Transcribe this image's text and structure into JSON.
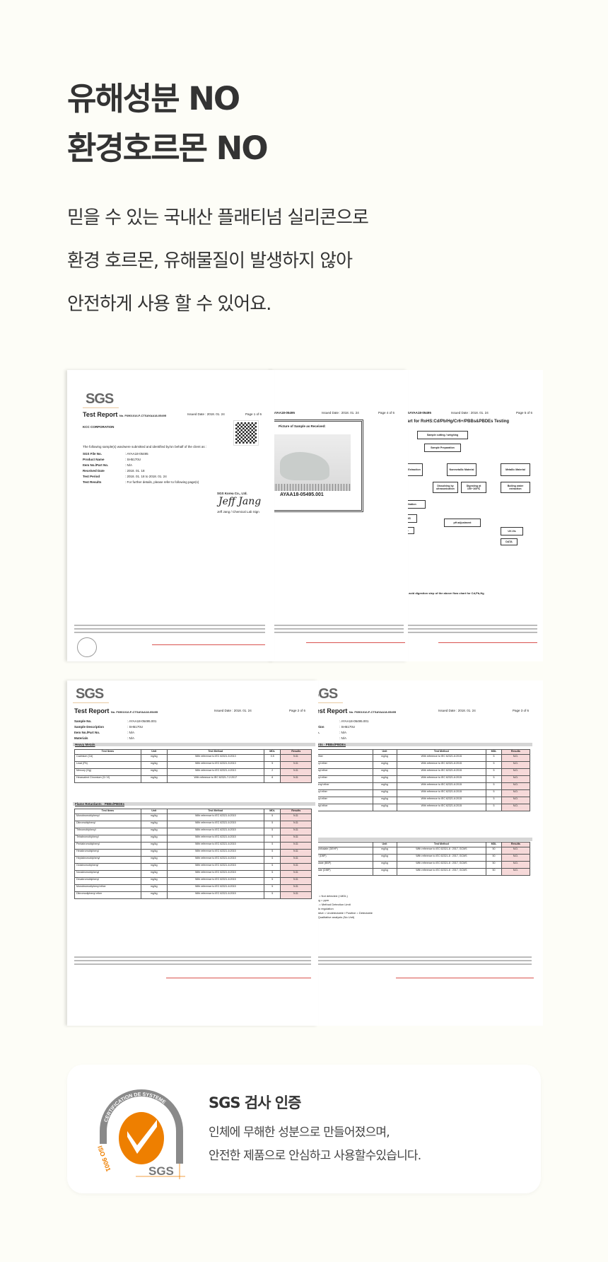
{
  "heading": {
    "line1": "유해성분 NO",
    "line2": "환경호르몬 NO"
  },
  "description": {
    "line1": "믿을 수 있는 국내산 플래티넘 실리콘으로",
    "line2": "환경 호르몬, 유해물질이 발생하지 않아",
    "line3": "안전하게 사용 할 수 있어요."
  },
  "documents": {
    "page1": {
      "logo": "SGS",
      "title": "Test Report",
      "report_no": "No. F690101/LF-CTSAYAA18-05495",
      "issued": "Issued Date : 2018. 01. 24",
      "page": "Page 1 of 6",
      "company": "KCC CORPORATION",
      "statement": "The following sample(s) was/were submitted and identified by/on behalf of the client as :",
      "fields": [
        {
          "k": "SGS File No.",
          "v": ": AYAA18-05495"
        },
        {
          "k": "Product Name",
          "v": ": SH5170U"
        },
        {
          "k": "Item No./Part No.",
          "v": ": N/A"
        },
        {
          "k": "Received Date",
          "v": ": 2018. 01. 18"
        },
        {
          "k": "Test Period",
          "v": ": 2018. 01. 18 to 2018. 01. 24"
        },
        {
          "k": "Test Results",
          "v": ": For further details, please refer to following page(s)"
        }
      ],
      "signer_company": "SGS Korea Co., Ltd.",
      "signature": "Jeff Jang",
      "signer": "Jeff Jang / Chemical Lab Sign"
    },
    "page4": {
      "ref": "AYAA18-05495",
      "issued": "Issued Date : 2018. 01. 24",
      "page": "Page 4 of 6",
      "photo_title": "Picture of Sample as Received:",
      "caption": "AYAA18-05495.001"
    },
    "page5": {
      "ref": "CTSAYAA18-05495",
      "issued": "Issued Date : 2018. 01. 24",
      "page": "Page 5 of 6",
      "chart_title": "Chart for RoHS:Cd/Pb/Hg/Cr6+/PBBs&PBDEs Testing",
      "boxes": [
        "Sample cutting / weighing",
        "Sample Preparation",
        "Solvent Extraction",
        "Nonmetallic Material",
        "Metallic Material",
        "Dissolving by ultrasonication",
        "Digesting at 150~160℃",
        "Boiling water extraction",
        "Filtration",
        "GC/MS",
        "DATA",
        "pH adjustment",
        "UV-Vis",
        "DATA"
      ],
      "note": "The acid digestion step of the above flow chart for Cd,Pb,Hg"
    },
    "page2": {
      "logo": "SGS",
      "title": "Test Report",
      "report_no": "No. F690101/LF-CTSAYAA18-05495",
      "issued": "Issued Date : 2018. 01. 24",
      "page": "Page 2 of 6",
      "fields": [
        {
          "k": "Sample No.",
          "v": ": AYAA18-05495.001"
        },
        {
          "k": "Sample Description",
          "v": ": SH5170U"
        },
        {
          "k": "Item No./Part No.",
          "v": ": N/A"
        },
        {
          "k": "Materials",
          "v": ": N/A"
        }
      ],
      "section1": "Heavy Metals",
      "section2": "Flame Retardants - PBBs/PBDEs",
      "headers": [
        "Test Items",
        "Unit",
        "Test Method",
        "MDL",
        "Results"
      ],
      "heavy_metals": [
        [
          "Cadmium (Cd)",
          "mg/kg",
          "With reference to IEC 62321-5:2013",
          "0.5",
          "N.D."
        ],
        [
          "Lead (Pb)",
          "mg/kg",
          "With reference to IEC 62321-5:2013",
          "5",
          "N.D."
        ],
        [
          "Mercury (Hg)",
          "mg/kg",
          "With reference to IEC 62321-4:2013",
          "2",
          "N.D."
        ],
        [
          "Hexavalent Chromium (Cr VI)",
          "mg/kg",
          "With reference to IEC 62321-7-2:2017",
          "8",
          "N.D."
        ]
      ],
      "flame_retardants": [
        [
          "Monobromobiphenyl",
          "mg/kg",
          "With reference to IEC 62321-6:2015",
          "5",
          "N.D."
        ],
        [
          "Dibromobiphenyl",
          "mg/kg",
          "With reference to IEC 62321-6:2015",
          "5",
          "N.D."
        ],
        [
          "Tribromobiphenyl",
          "mg/kg",
          "With reference to IEC 62321-6:2015",
          "5",
          "N.D."
        ],
        [
          "Tetrabromobiphenyl",
          "mg/kg",
          "With reference to IEC 62321-6:2015",
          "5",
          "N.D."
        ],
        [
          "Pentabromobiphenyl",
          "mg/kg",
          "With reference to IEC 62321-6:2015",
          "5",
          "N.D."
        ],
        [
          "Hexabromobiphenyl",
          "mg/kg",
          "With reference to IEC 62321-6:2015",
          "5",
          "N.D."
        ],
        [
          "Heptabromobiphenyl",
          "mg/kg",
          "With reference to IEC 62321-6:2015",
          "5",
          "N.D."
        ],
        [
          "Octabromobiphenyl",
          "mg/kg",
          "With reference to IEC 62321-6:2015",
          "5",
          "N.D."
        ],
        [
          "Nonabromobiphenyl",
          "mg/kg",
          "With reference to IEC 62321-6:2015",
          "5",
          "N.D."
        ],
        [
          "Decabromobiphenyl",
          "mg/kg",
          "With reference to IEC 62321-6:2015",
          "5",
          "N.D."
        ],
        [
          "Monobromodiphenyl ether",
          "mg/kg",
          "With reference to IEC 62321-6:2015",
          "5",
          "N.D."
        ],
        [
          "Dibromodiphenyl ether",
          "mg/kg",
          "With reference to IEC 62321-6:2015",
          "5",
          "N.D."
        ]
      ]
    },
    "page3": {
      "logo": "SGS",
      "title": "Test Report",
      "report_no": "No. F690101/LF-CTSAYAA18-05495",
      "issued": "Issued Date : 2018. 01. 24",
      "page": "Page 3 of 6",
      "fields": [
        {
          "k": "",
          "v": ": AYAA18-05495.001"
        },
        {
          "k": "cription",
          "v": ": SH5170U"
        },
        {
          "k": "t No.",
          "v": ": N/A"
        },
        {
          "k": "",
          "v": ": N/A"
        }
      ],
      "section1": "rdants - PBBs/PBDEs",
      "headers": [
        "",
        "Unit",
        "Test Method",
        "MDL",
        "Results"
      ],
      "rows": [
        [
          "nyl ether",
          "mg/kg",
          "With reference to IEC 62321-6:2015",
          "5",
          "N.D."
        ],
        [
          "phenyl ether",
          "mg/kg",
          "With reference to IEC 62321-6:2015",
          "5",
          "N.D."
        ],
        [
          "iphenyl ether",
          "mg/kg",
          "With reference to IEC 62321-6:2015",
          "5",
          "N.D."
        ],
        [
          "phenyl ether",
          "mg/kg",
          "With reference to IEC 62321-6:2015",
          "5",
          "N.D."
        ],
        [
          "diphenyl ether",
          "mg/kg",
          "With reference to IEC 62321-6:2015",
          "5",
          "N.D."
        ],
        [
          "phenyl ether",
          "mg/kg",
          "With reference to IEC 62321-6:2015",
          "5",
          "N.D."
        ],
        [
          "phenyl ether",
          "mg/kg",
          "With reference to IEC 62321-6:2015",
          "5",
          "N.D."
        ],
        [
          "iphenyl ether",
          "mg/kg",
          "With reference to IEC 62321-6:2015",
          "5",
          "N.D."
        ]
      ],
      "rows2": [
        [
          "xyl) phthalate (DEHP)",
          "mg/kg",
          "With reference to IEC 62321-8 : 2017, GCMS",
          "50",
          "N.D."
        ],
        [
          "alate (DBP)",
          "mg/kg",
          "With reference to IEC 62321-8 : 2017, GCMS",
          "50",
          "N.D."
        ],
        [
          "phthalate (BBP)",
          "mg/kg",
          "With reference to IEC 62321-8 : 2017, GCMS",
          "50",
          "N.D."
        ],
        [
          "hthalate (DIBP)",
          "mg/kg",
          "With reference to IEC 62321-8 : 2017, GCMS",
          "50",
          "N.D."
        ]
      ],
      "notes": [
        "N.D. = Not detected (<MDL)",
        "mg/kg = ppm",
        "MDL = Method Detection Limit",
        "- = No regulation",
        "Negative = Undetectable / Positive = Detectable",
        "** = Qualitative analysis (No Unit)"
      ]
    }
  },
  "certification": {
    "seal_ring_text": "CERTIFICATION DE SYSTEME",
    "seal_iso": "ISO 9001",
    "seal_logo": "SGS",
    "title": "SGS 검사 인증",
    "line1": "인체에 무해한 성분으로 만들어졌으며,",
    "line2": "안전한 제품으로 안심하고 사용할수있습니다.",
    "colors": {
      "orange": "#ee7f00",
      "gray": "#8a8a8a"
    }
  }
}
